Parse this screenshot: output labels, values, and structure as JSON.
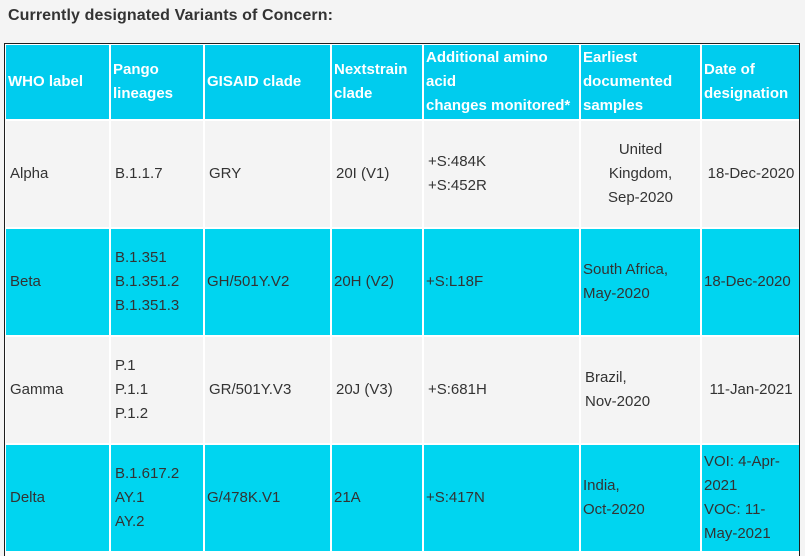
{
  "heading": "Currently designated Variants of Concern:",
  "columns": [
    {
      "lines": [
        "WHO label"
      ]
    },
    {
      "lines": [
        "Pango",
        "lineages"
      ]
    },
    {
      "lines": [
        "GISAID clade"
      ]
    },
    {
      "lines": [
        "Nextstrain",
        "clade"
      ]
    },
    {
      "lines": [
        "Additional amino",
        "acid",
        "changes monitored*"
      ]
    },
    {
      "lines": [
        "Earliest",
        "documented",
        "samples"
      ]
    },
    {
      "lines": [
        "Date of",
        "designation"
      ]
    }
  ],
  "rows": [
    {
      "who": "Alpha",
      "pango": [
        "B.1.1.7"
      ],
      "gisaid": "GRY",
      "nextstrain": "20I (V1)",
      "amino": [
        "+S:484K",
        "+S:452R"
      ],
      "earliest": [
        "United",
        "Kingdom,",
        "Sep-2020"
      ],
      "date": [
        "18-Dec-2020"
      ]
    },
    {
      "who": "Beta",
      "pango": [
        "B.1.351",
        "B.1.351.2",
        "B.1.351.3"
      ],
      "gisaid": "GH/501Y.V2",
      "nextstrain": "20H (V2)",
      "amino": [
        "+S:L18F"
      ],
      "earliest": [
        "South Africa,",
        "May-2020"
      ],
      "date": [
        "18-Dec-2020"
      ]
    },
    {
      "who": "Gamma",
      "pango": [
        "P.1",
        "P.1.1",
        "P.1.2"
      ],
      "gisaid": "GR/501Y.V3",
      "nextstrain": "20J (V3)",
      "amino": [
        "+S:681H"
      ],
      "earliest": [
        "Brazil,",
        "Nov-2020"
      ],
      "date": [
        "11-Jan-2021"
      ]
    },
    {
      "who": "Delta",
      "pango": [
        "B.1.617.2",
        "AY.1",
        "AY.2"
      ],
      "gisaid": "G/478K.V1",
      "nextstrain": "21A",
      "amino": [
        "+S:417N"
      ],
      "earliest": [
        "India,",
        "Oct-2020"
      ],
      "date": [
        "VOI: 4-Apr-",
        "2021",
        "VOC: 11-",
        "May-2021"
      ]
    }
  ]
}
